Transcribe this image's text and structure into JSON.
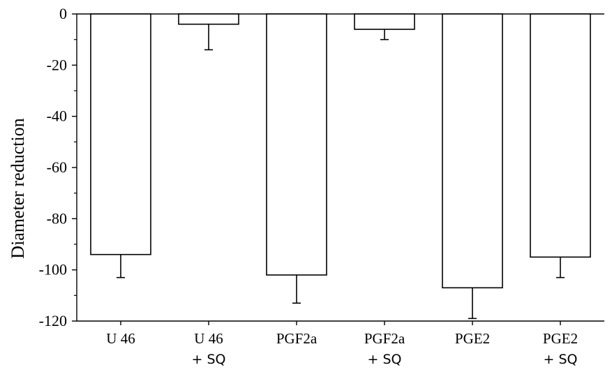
{
  "chart_data": {
    "type": "bar",
    "title": "",
    "xlabel": "",
    "ylabel": "Diameter  reduction",
    "ylim": [
      -120,
      0
    ],
    "yticks": [
      0,
      -20,
      -40,
      -60,
      -80,
      -100,
      -120
    ],
    "yticks_labels": [
      "0",
      "-20",
      "-40",
      "-60",
      "-80",
      "-100",
      "-120"
    ],
    "grid": false,
    "categories": [
      {
        "line1": "U 46",
        "line2": ""
      },
      {
        "line1": "U 46",
        "line2": "+ SQ"
      },
      {
        "line1": "PGF2a",
        "line2": ""
      },
      {
        "line1": "PGF2a",
        "line2": "+ SQ"
      },
      {
        "line1": "PGE2",
        "line2": ""
      },
      {
        "line1": "PGE2",
        "line2": "+ SQ"
      }
    ],
    "values": [
      -94,
      -4,
      -102,
      -6,
      -107,
      -95
    ],
    "errors": [
      9,
      10,
      11,
      4,
      12,
      8
    ],
    "bar_fill": "#ffffff",
    "bar_stroke": "#000000"
  }
}
